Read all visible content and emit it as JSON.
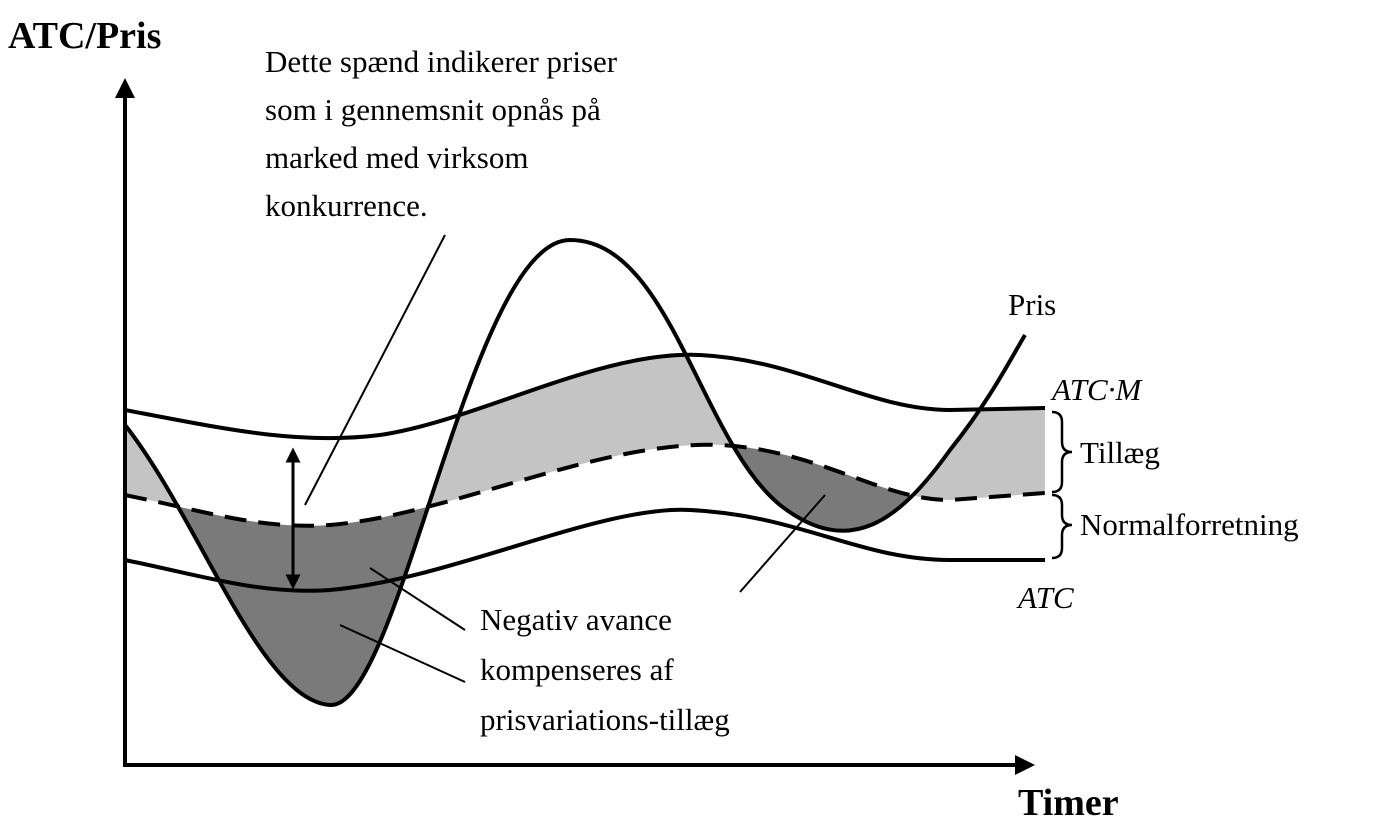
{
  "axes": {
    "y_label": "ATC/Pris",
    "x_label": "Timer"
  },
  "range_note": [
    "Dette spænd indikerer priser",
    "som i gennemsnit opnås på",
    "marked med virksom",
    "konkurrence."
  ],
  "curve_labels": {
    "price": "Pris",
    "atc_m": "ATC·M",
    "atc": "ATC"
  },
  "brace_labels": {
    "markup": "Tillæg",
    "normal": "Normalforretning"
  },
  "negative_note": [
    "Negativ avance",
    "kompenseres af",
    "prisvariations-tillæg"
  ]
}
